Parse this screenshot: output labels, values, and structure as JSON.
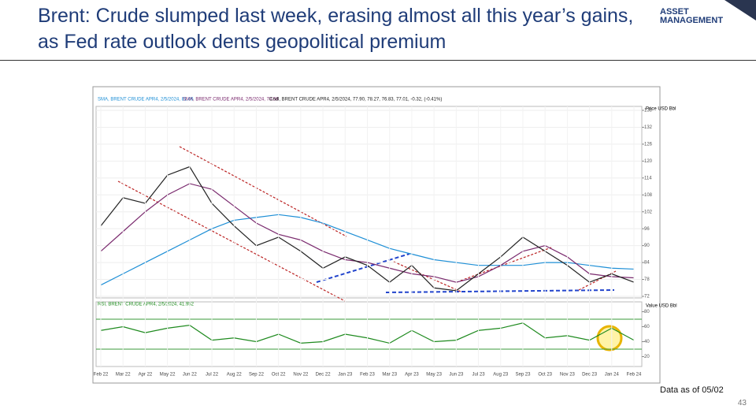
{
  "header": {
    "title": "Brent: Crude slumped last week, erasing almost all this year’s gains, as Fed rate outlook dents geopolitical premium",
    "logo": "ASSET MANAGEMENT"
  },
  "footer": {
    "note": "Data as of 05/02",
    "page": "43"
  },
  "chart_data": [
    {
      "type": "line",
      "categories": [
        "Feb 22",
        "Mar 22",
        "Apr 22",
        "May 22",
        "Jun 22",
        "Jul 22",
        "Aug 22",
        "Sep 22",
        "Oct 22",
        "Nov 22",
        "Dec 22",
        "Jan 23",
        "Feb 23",
        "Mar 23",
        "Apr 23",
        "May 23",
        "Jun 23",
        "Jul 23",
        "Aug 23",
        "Sep 23",
        "Oct 23",
        "Nov 23",
        "Dec 23",
        "Jan 24",
        "Feb 24"
      ],
      "y_label": "Price USD Bbl",
      "ylim": [
        72,
        138
      ],
      "yticks": [
        72,
        78,
        84,
        90,
        96,
        102,
        108,
        114,
        120,
        126,
        132,
        138
      ],
      "grid": true,
      "series": [
        {
          "name": "SMA, BRENT CRUDE APR4, 2/5/2024, 81.66",
          "color": "#1e8fd6",
          "values": [
            76,
            80,
            84,
            88,
            92,
            96,
            99,
            100,
            101,
            100,
            98,
            95,
            92,
            89,
            87,
            85,
            84,
            83,
            83,
            83,
            84,
            84,
            83,
            82,
            81.66
          ]
        },
        {
          "name": "SMA, BRENT CRUDE APR4, 2/5/2024, 78.58",
          "color": "#7a2a6e",
          "values": [
            88,
            95,
            102,
            108,
            112,
            110,
            104,
            98,
            94,
            92,
            88,
            85,
            84,
            82,
            80,
            79,
            77,
            79,
            83,
            88,
            90,
            86,
            80,
            79,
            78.58
          ]
        },
        {
          "name": "Cndl, BRENT CRUDE APR4, 2/5/2024, 77.90, 78.27, 76.83, 77.01, -0.32, (-0.41%)",
          "color": "#222222",
          "values": [
            97,
            107,
            105,
            115,
            118,
            105,
            97,
            90,
            93,
            88,
            82,
            86,
            83,
            77,
            83,
            75,
            74,
            80,
            86,
            93,
            88,
            83,
            77,
            80,
            77.01
          ]
        }
      ]
    },
    {
      "type": "line",
      "y_label": "Value USD Bbl",
      "ylim": [
        10,
        90
      ],
      "yticks": [
        20,
        40,
        60,
        80
      ],
      "hlines": [
        70,
        30
      ],
      "hline_color": "#3a9a3a",
      "series": [
        {
          "name": "RSI, BRENT CRUDE APR4, 2/5/2024, 41.952",
          "color": "#1e8a1e",
          "values": [
            55,
            60,
            52,
            58,
            62,
            42,
            45,
            40,
            50,
            38,
            40,
            50,
            45,
            38,
            55,
            40,
            42,
            55,
            58,
            65,
            45,
            48,
            42,
            58,
            41.952
          ]
        }
      ]
    }
  ]
}
